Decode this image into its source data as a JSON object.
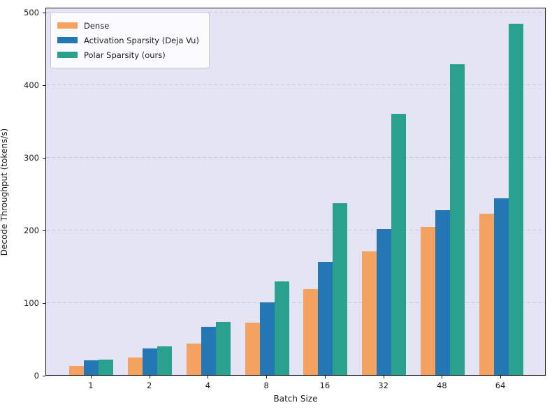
{
  "chart_data": {
    "type": "bar",
    "title": "",
    "xlabel": "Batch Size",
    "ylabel": "Decode Throughput (tokens/s)",
    "categories": [
      "1",
      "2",
      "4",
      "8",
      "16",
      "32",
      "48",
      "64"
    ],
    "series": [
      {
        "name": "Dense",
        "color": "#f3a25f",
        "values": [
          13,
          24,
          43,
          72,
          118,
          170,
          204,
          222
        ]
      },
      {
        "name": "Activation Sparsity (Deja Vu)",
        "color": "#2277b4",
        "values": [
          20,
          37,
          66,
          100,
          156,
          201,
          227,
          243
        ]
      },
      {
        "name": "Polar Sparsity (ours)",
        "color": "#2aa08f",
        "values": [
          21,
          39,
          73,
          129,
          237,
          360,
          428,
          484
        ]
      }
    ],
    "yticks": [
      0,
      100,
      200,
      300,
      400,
      500
    ],
    "ylim": [
      0,
      507
    ],
    "grid": "horizontal-dashed",
    "legend_position": "upper-left"
  },
  "colors": {
    "plot_background": "#e4e4f4",
    "figure_background": "#ffffff",
    "gridline": "#c9c9d3",
    "spine": "#1a1a1a",
    "text": "#202020",
    "legend_background": "#fbfbfe",
    "legend_border": "#c8c8d0"
  }
}
